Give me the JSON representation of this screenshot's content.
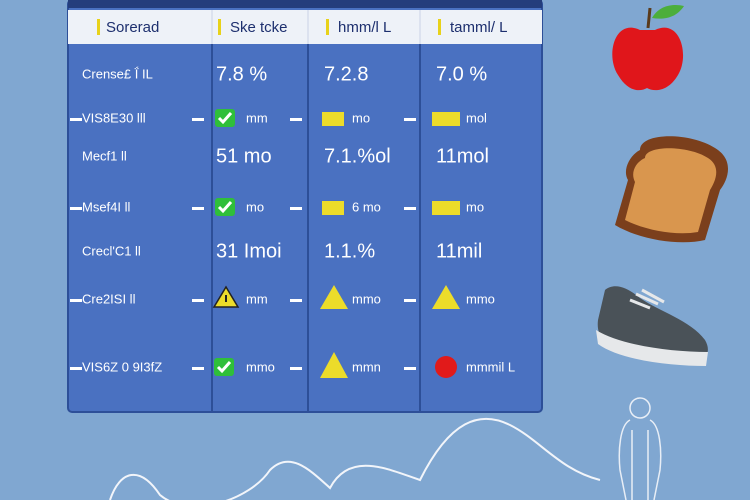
{
  "table": {
    "header": [
      "Sorerad",
      "Ske tcke",
      "hmm/l L",
      "tamml/ L"
    ],
    "rows": [
      [
        "Crense£ Ḯ IL",
        "7.8 %",
        "7.2.8",
        "7.0 %"
      ],
      [
        "VIS8E30 lll",
        "mm",
        "mo",
        "mol"
      ],
      [
        "Mecf1 ll",
        "51 mo",
        "7.1.%ol",
        "11mol"
      ],
      [
        "Msef4I ll",
        "mo",
        "6 mo",
        "mo"
      ],
      [
        "Crecl'C1 ll",
        "31 Imoi",
        "1.1.%",
        "11mil"
      ],
      [
        "Cre2ISI ll",
        "mm",
        "mmo",
        "mmo"
      ],
      [
        "VIS6Z 0 9I3fZ",
        "mmo",
        "mmn",
        "mmmil L"
      ]
    ]
  }
}
